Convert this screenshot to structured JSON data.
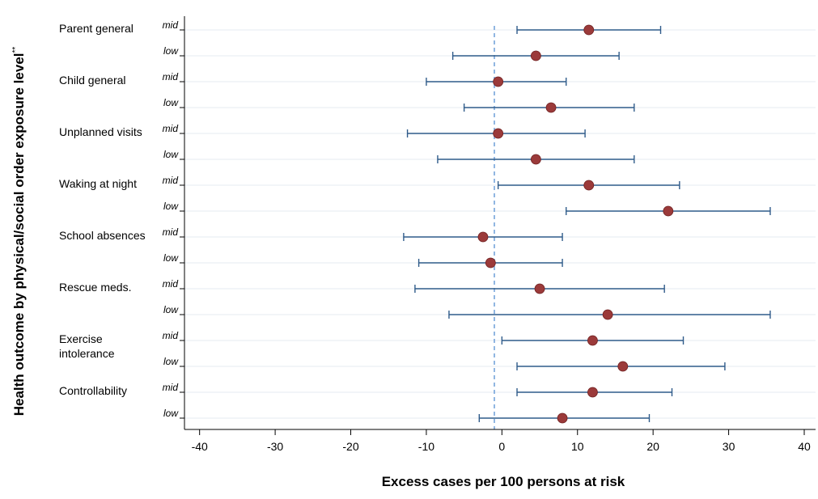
{
  "chart_data": {
    "type": "forest",
    "xlabel": "Excess cases per 100 persons at risk",
    "ylabel": "Health outcome by physical/social order exposure level",
    "ylabel_suffix": "**",
    "xlim": [
      -42,
      41.5
    ],
    "xticks": [
      -40,
      -30,
      -20,
      -10,
      0,
      10,
      20,
      30,
      40
    ],
    "reference_line": -1,
    "colors": {
      "ci": "#2f5b8a",
      "point": "#9b3a3a",
      "ref": "#6d9ed8",
      "grid": "#e6ebf0"
    },
    "groups": [
      {
        "label": [
          "Parent general"
        ],
        "rows": [
          0,
          1
        ]
      },
      {
        "label": [
          "Child general"
        ],
        "rows": [
          2,
          3
        ]
      },
      {
        "label": [
          "Unplanned visits"
        ],
        "rows": [
          4,
          5
        ]
      },
      {
        "label": [
          "Waking at night"
        ],
        "rows": [
          6,
          7
        ]
      },
      {
        "label": [
          "School absences"
        ],
        "rows": [
          8,
          9
        ]
      },
      {
        "label": [
          "Rescue meds."
        ],
        "rows": [
          10,
          11
        ]
      },
      {
        "label": [
          "Exercise",
          "intolerance"
        ],
        "rows": [
          12,
          13
        ]
      },
      {
        "label": [
          "Controllability"
        ],
        "rows": [
          14,
          15
        ]
      }
    ],
    "rows": [
      {
        "level": "mid",
        "estimate": 11.5,
        "lower": 2.0,
        "upper": 21.0
      },
      {
        "level": "low",
        "estimate": 4.5,
        "lower": -6.5,
        "upper": 15.5
      },
      {
        "level": "mid",
        "estimate": -0.5,
        "lower": -10.0,
        "upper": 8.5
      },
      {
        "level": "low",
        "estimate": 6.5,
        "lower": -5.0,
        "upper": 17.5
      },
      {
        "level": "mid",
        "estimate": -0.5,
        "lower": -12.5,
        "upper": 11.0
      },
      {
        "level": "low",
        "estimate": 4.5,
        "lower": -8.5,
        "upper": 17.5
      },
      {
        "level": "mid",
        "estimate": 11.5,
        "lower": -0.5,
        "upper": 23.5
      },
      {
        "level": "low",
        "estimate": 22.0,
        "lower": 8.5,
        "upper": 35.5
      },
      {
        "level": "mid",
        "estimate": -2.5,
        "lower": -13.0,
        "upper": 8.0
      },
      {
        "level": "low",
        "estimate": -1.5,
        "lower": -11.0,
        "upper": 8.0
      },
      {
        "level": "mid",
        "estimate": 5.0,
        "lower": -11.5,
        "upper": 21.5
      },
      {
        "level": "low",
        "estimate": 14.0,
        "lower": -7.0,
        "upper": 35.5
      },
      {
        "level": "mid",
        "estimate": 12.0,
        "lower": 0.0,
        "upper": 24.0
      },
      {
        "level": "low",
        "estimate": 16.0,
        "lower": 2.0,
        "upper": 29.5
      },
      {
        "level": "mid",
        "estimate": 12.0,
        "lower": 2.0,
        "upper": 22.5
      },
      {
        "level": "low",
        "estimate": 8.0,
        "lower": -3.0,
        "upper": 19.5
      }
    ]
  }
}
